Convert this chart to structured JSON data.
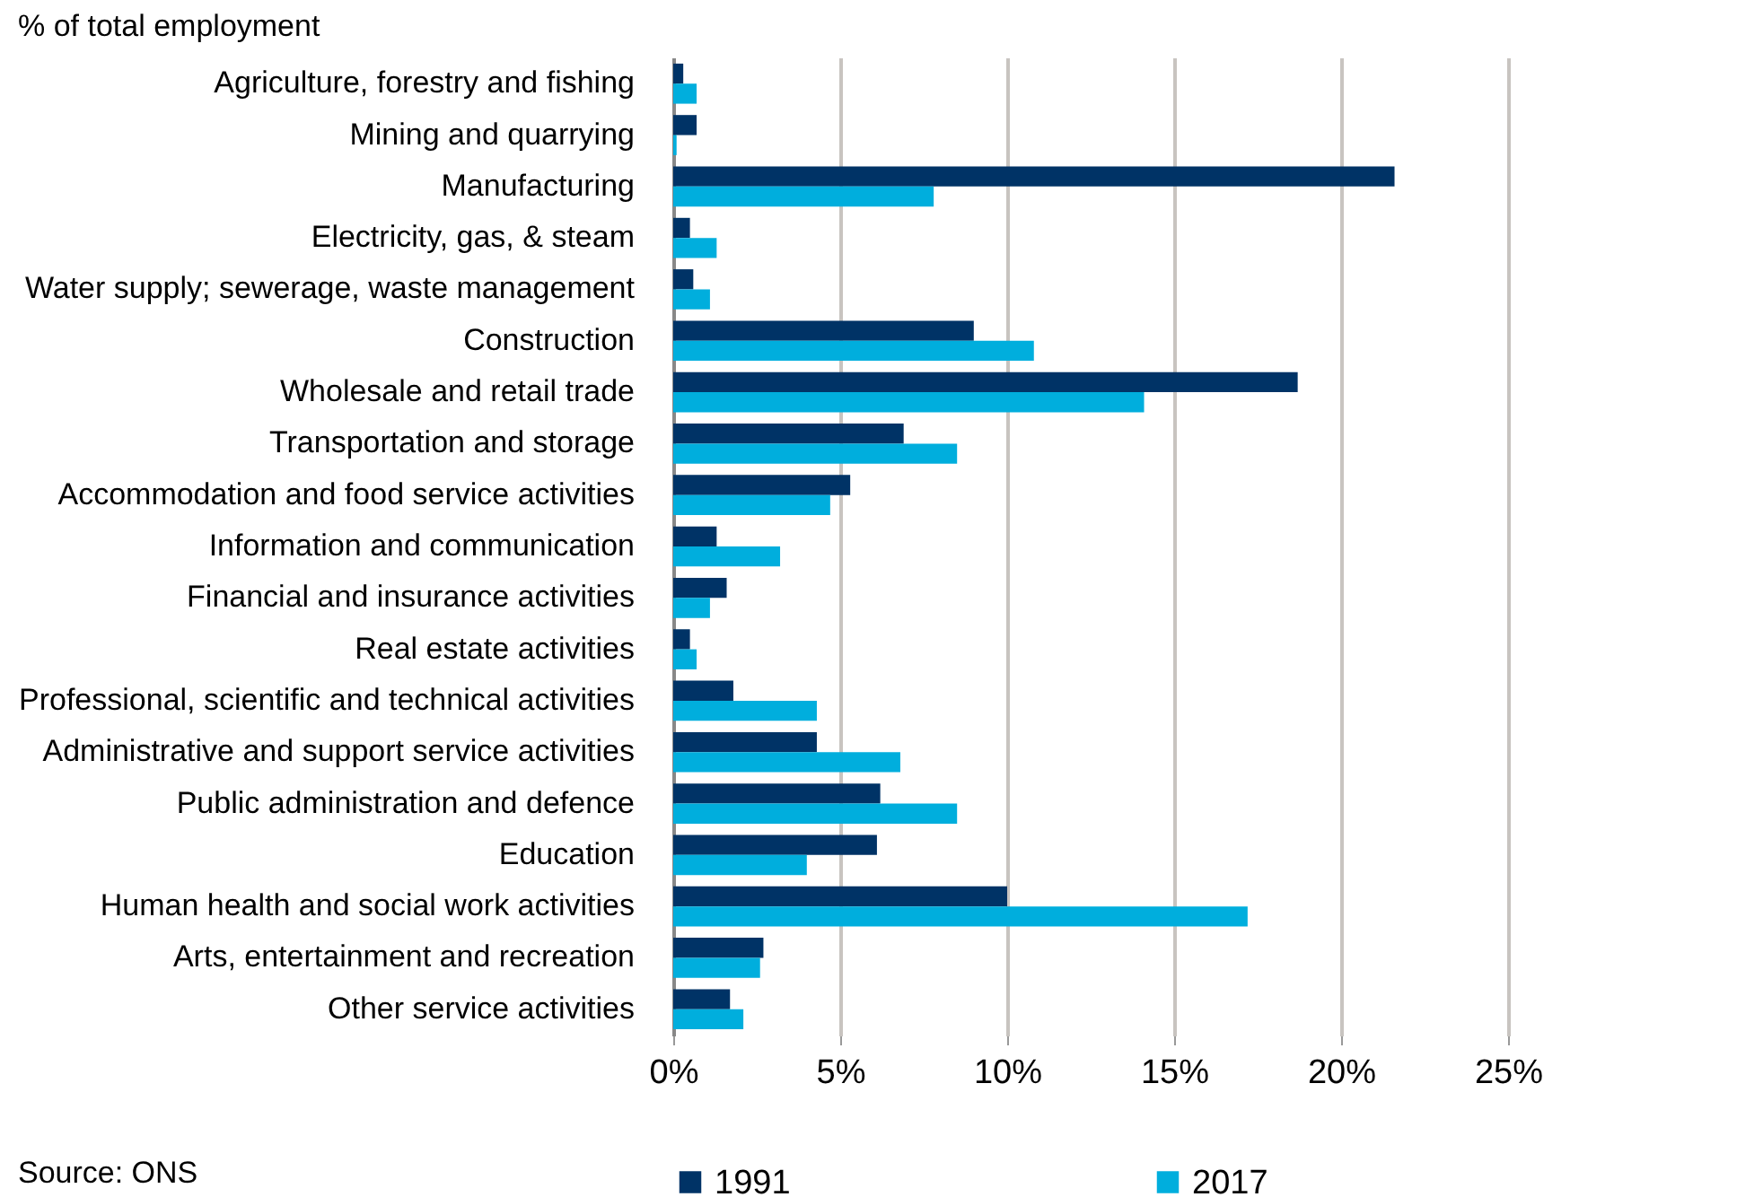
{
  "chart_data": {
    "type": "bar",
    "orientation": "horizontal",
    "xlabel": "% of total employment",
    "categories": [
      "Agriculture, forestry and fishing",
      "Mining and quarrying",
      "Manufacturing",
      "Electricity, gas, & steam",
      "Water supply; sewerage, waste management",
      "Construction",
      "Wholesale and retail trade",
      "Transportation and storage",
      "Accommodation and food service activities",
      "Information and communication",
      "Financial and insurance activities",
      "Real estate activities",
      "Professional, scientific and technical activities",
      "Administrative and support service activities",
      "Public administration and defence",
      "Education",
      "Human health and social work activities",
      "Arts, entertainment and recreation",
      "Other service activities"
    ],
    "series": [
      {
        "name": "1991",
        "color": "#003366",
        "values": [
          0.3,
          0.7,
          21.6,
          0.5,
          0.6,
          9.0,
          18.7,
          6.9,
          5.3,
          1.3,
          1.6,
          0.5,
          1.8,
          4.3,
          6.2,
          6.1,
          10.0,
          2.7,
          1.7
        ]
      },
      {
        "name": "2017",
        "color": "#00aedd",
        "values": [
          0.7,
          0.1,
          7.8,
          1.3,
          1.1,
          10.8,
          14.1,
          8.5,
          4.7,
          3.2,
          1.1,
          0.7,
          4.3,
          6.8,
          8.5,
          4.0,
          17.2,
          2.6,
          2.1
        ]
      }
    ],
    "xlim": [
      0,
      25
    ],
    "xticks": [
      {
        "value": 0,
        "label": "0%"
      },
      {
        "value": 5,
        "label": "5%"
      },
      {
        "value": 10,
        "label": "10%"
      },
      {
        "value": 15,
        "label": "15%"
      },
      {
        "value": 20,
        "label": "20%"
      },
      {
        "value": 25,
        "label": "25%"
      }
    ],
    "grid": "x",
    "legend": "bottom",
    "annotations": [
      "Source: ONS"
    ]
  }
}
